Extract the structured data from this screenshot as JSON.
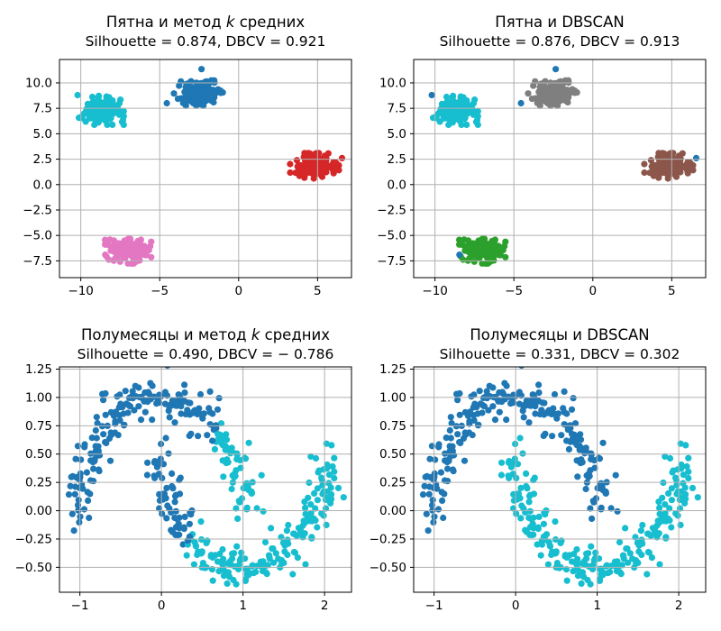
{
  "figure": {
    "background": "#ffffff"
  },
  "colors": {
    "grid": "#b0b0b0",
    "spine": "#000000",
    "text": "#000000",
    "blue": "#1f77b4",
    "cyan": "#17becf",
    "red": "#d62728",
    "pink": "#e377c2",
    "gray": "#7f7f7f",
    "brown": "#8c564b",
    "green": "#2ca02c"
  },
  "chart_data": {
    "type": "scatter",
    "grid": true,
    "datasets": {
      "blobs": {
        "seed": 42,
        "clusters": [
          {
            "name": "left",
            "cx": -8.7,
            "cy": 7.3,
            "sx": 0.66,
            "sy": 0.66,
            "n": 130
          },
          {
            "name": "top",
            "cx": -2.55,
            "cy": 9.0,
            "sx": 0.72,
            "sy": 0.58,
            "n": 130
          },
          {
            "name": "right",
            "cx": 4.8,
            "cy": 1.85,
            "sx": 0.72,
            "sy": 0.58,
            "n": 130
          },
          {
            "name": "bottom",
            "cx": -7.0,
            "cy": -6.55,
            "sx": 0.68,
            "sy": 0.56,
            "n": 130
          }
        ],
        "outliers": [
          [
            -10.2,
            8.8
          ],
          [
            -4.55,
            8.0
          ],
          [
            -2.35,
            11.35
          ],
          [
            6.55,
            2.6
          ],
          [
            -8.45,
            -6.9
          ]
        ]
      },
      "moons": {
        "seed": 7,
        "n_per_moon": 240,
        "noise": 0.09
      }
    },
    "panels": [
      {
        "id": "blobs-kmeans",
        "title_pre": "Пятна и метод ",
        "title_italic": "k",
        "title_post": " средних",
        "subtitle": "Silhouette = 0.874, DBCV = 0.921",
        "dataset": "blobs",
        "coloring": "labels",
        "cluster_colors": {
          "left": "#17becf",
          "top": "#1f77b4",
          "right": "#d62728",
          "bottom": "#e377c2"
        },
        "outlier_colors": [
          "#17becf",
          "#1f77b4",
          "#1f77b4",
          "#d62728",
          "#e377c2"
        ],
        "xlim": [
          -11.35,
          7.15
        ],
        "ylim": [
          -9.15,
          12.3
        ],
        "xticks": {
          "values": [
            -10,
            -5,
            0,
            5
          ],
          "labels": [
            "−10",
            "−5",
            "0",
            "5"
          ]
        },
        "yticks": {
          "values": [
            10,
            7.5,
            5,
            2.5,
            0,
            -2.5,
            -5,
            -7.5
          ],
          "labels": [
            "10.0",
            "7.5",
            "5.0",
            "2.5",
            "0.0",
            "−2.5",
            "−5.0",
            "−7.5"
          ]
        }
      },
      {
        "id": "blobs-dbscan",
        "title_pre": "Пятна и DBSCAN",
        "title_italic": "",
        "title_post": "",
        "subtitle": "Silhouette = 0.876, DBCV = 0.913",
        "dataset": "blobs",
        "coloring": "labels",
        "cluster_colors": {
          "left": "#17becf",
          "top": "#7f7f7f",
          "right": "#8c564b",
          "bottom": "#2ca02c"
        },
        "outlier_colors": [
          "#1f77b4",
          "#1f77b4",
          "#1f77b4",
          "#1f77b4",
          "#1f77b4"
        ],
        "xlim": [
          -11.35,
          7.15
        ],
        "ylim": [
          -9.15,
          12.3
        ],
        "xticks": {
          "values": [
            -10,
            -5,
            0,
            5
          ],
          "labels": [
            "−10",
            "−5",
            "0",
            "5"
          ]
        },
        "yticks": {
          "values": [
            10,
            7.5,
            5,
            2.5,
            0,
            -2.5,
            -5,
            -7.5
          ],
          "labels": [
            "10.0",
            "7.5",
            "5.0",
            "2.5",
            "0.0",
            "−2.5",
            "−5.0",
            "−7.5"
          ]
        }
      },
      {
        "id": "moons-kmeans",
        "title_pre": "Полумесяцы и метод ",
        "title_italic": "k",
        "title_post": " средних",
        "subtitle": "Silhouette = 0.490, DBCV = − 0.786",
        "dataset": "moons",
        "coloring": "kmeans",
        "centroids": [
          [
            -0.2,
            0.45
          ],
          [
            1.2,
            -0.05
          ]
        ],
        "centroid_colors": [
          "#1f77b4",
          "#17becf"
        ],
        "xlim": [
          -1.25,
          2.33
        ],
        "ylim": [
          -0.72,
          1.27
        ],
        "xticks": {
          "values": [
            -1,
            0,
            1,
            2
          ],
          "labels": [
            "−1",
            "0",
            "1",
            "2"
          ]
        },
        "yticks": {
          "values": [
            1.25,
            1.0,
            0.75,
            0.5,
            0.25,
            0,
            -0.25,
            -0.5
          ],
          "labels": [
            "1.25",
            "1.00",
            "0.75",
            "0.50",
            "0.25",
            "0.00",
            "−0.25",
            "−0.50"
          ]
        }
      },
      {
        "id": "moons-dbscan",
        "title_pre": "Полумесяцы и DBSCAN",
        "title_italic": "",
        "title_post": "",
        "subtitle": "Silhouette = 0.331, DBCV = 0.302",
        "dataset": "moons",
        "coloring": "moon_labels",
        "moon_colors": [
          "#1f77b4",
          "#17becf"
        ],
        "xlim": [
          -1.25,
          2.33
        ],
        "ylim": [
          -0.72,
          1.27
        ],
        "xticks": {
          "values": [
            -1,
            0,
            1,
            2
          ],
          "labels": [
            "−1",
            "0",
            "1",
            "2"
          ]
        },
        "yticks": {
          "values": [
            1.25,
            1.0,
            0.75,
            0.5,
            0.25,
            0,
            -0.25,
            -0.5
          ],
          "labels": [
            "1.25",
            "1.00",
            "0.75",
            "0.50",
            "0.25",
            "0.00",
            "−0.25",
            "−0.50"
          ]
        }
      }
    ]
  }
}
